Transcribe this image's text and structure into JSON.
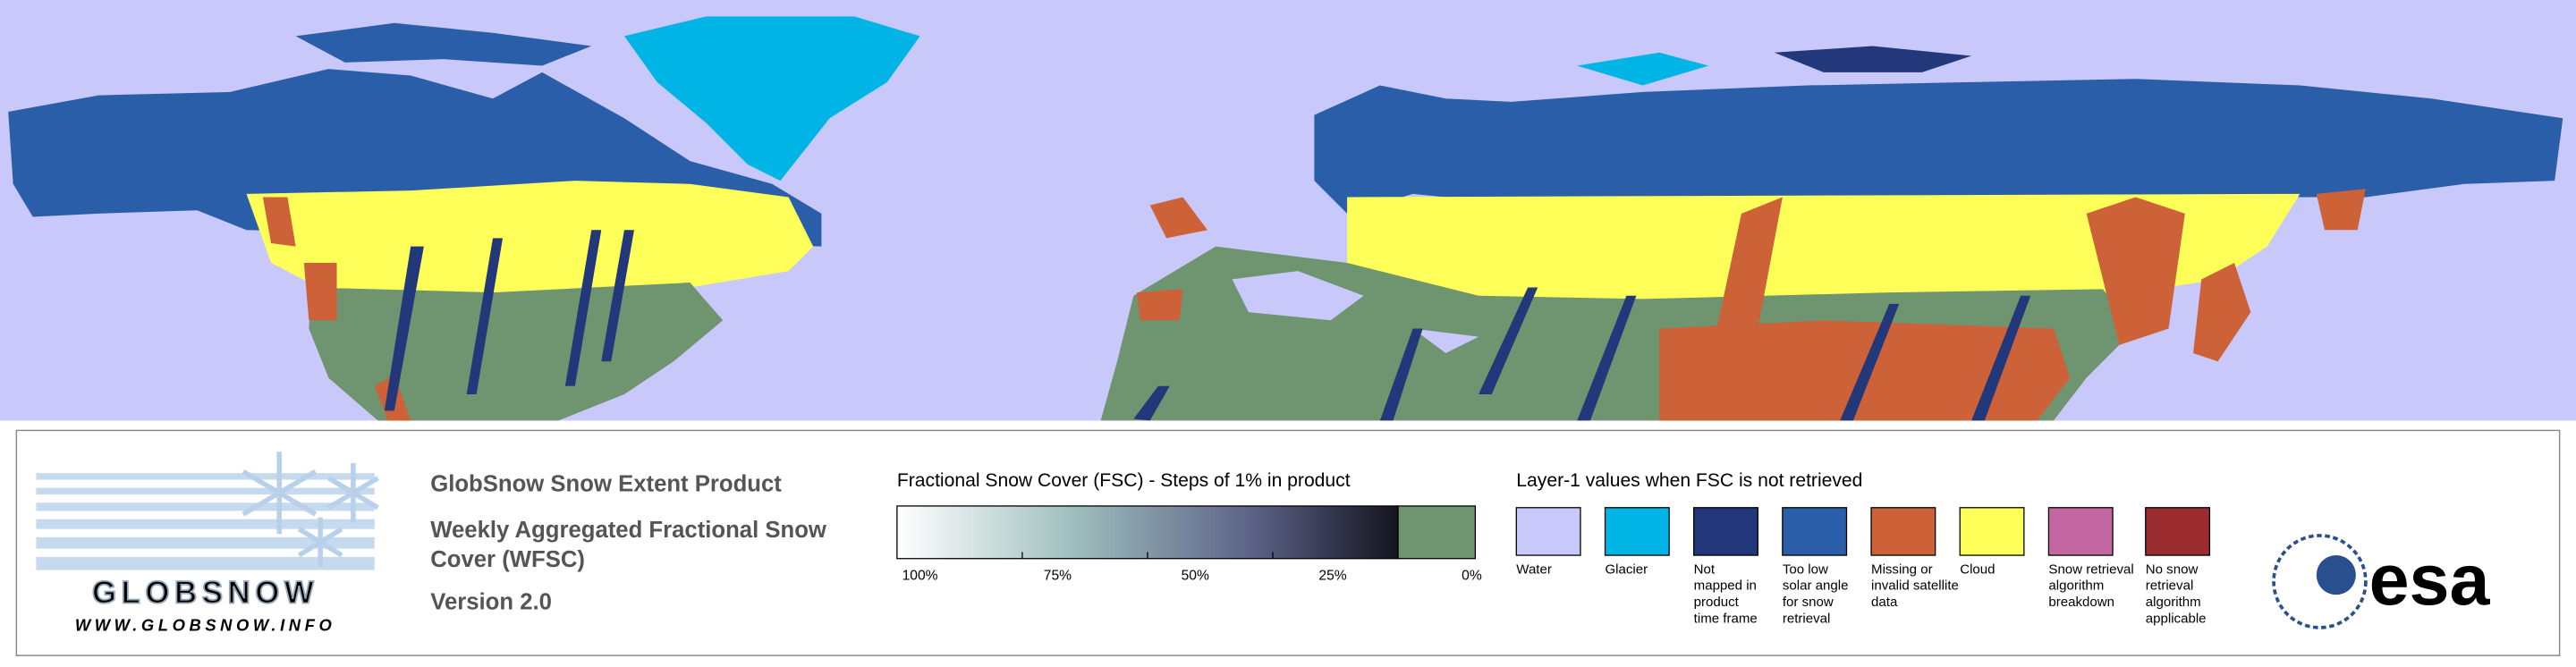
{
  "logo": {
    "name": "GLOBSNOW",
    "url": "WWW.GLOBSNOW.INFO"
  },
  "product": {
    "title": "GlobSnow Snow Extent Product",
    "subtitle_lines": [
      "Weekly Aggregated Fractional Snow",
      "Cover (WFSC)"
    ],
    "version": "Version 2.0"
  },
  "fsc_legend": {
    "title": "Fractional Snow Cover (FSC) - Steps of 1% in product",
    "ticks": [
      "100%",
      "75%",
      "50%",
      "25%",
      "0%"
    ]
  },
  "layer1_legend": {
    "title": "Layer-1 values when FSC is not retrieved",
    "items": [
      {
        "label_lines": [
          "Water"
        ],
        "color": "#c8c8fa"
      },
      {
        "label_lines": [
          "Glacier"
        ],
        "color": "#00b4e6"
      },
      {
        "label_lines": [
          "Not",
          "mapped in",
          "product",
          "time frame"
        ],
        "color": "#23387a"
      },
      {
        "label_lines": [
          "Too low",
          "solar angle",
          "for snow",
          "retrieval"
        ],
        "color": "#2a5ea8"
      },
      {
        "label_lines": [
          "Missing or",
          "invalid satellite",
          "data"
        ],
        "color": "#cd6138"
      },
      {
        "label_lines": [
          "Cloud"
        ],
        "color": "#ffff5a"
      },
      {
        "label_lines": [
          "Snow retrieval",
          "algorithm",
          "breakdown"
        ],
        "color": "#c466a2"
      },
      {
        "label_lines": [
          "No snow",
          "retrieval",
          "algorithm",
          "applicable"
        ],
        "color": "#9b2c30"
      }
    ]
  },
  "agency": "esa"
}
